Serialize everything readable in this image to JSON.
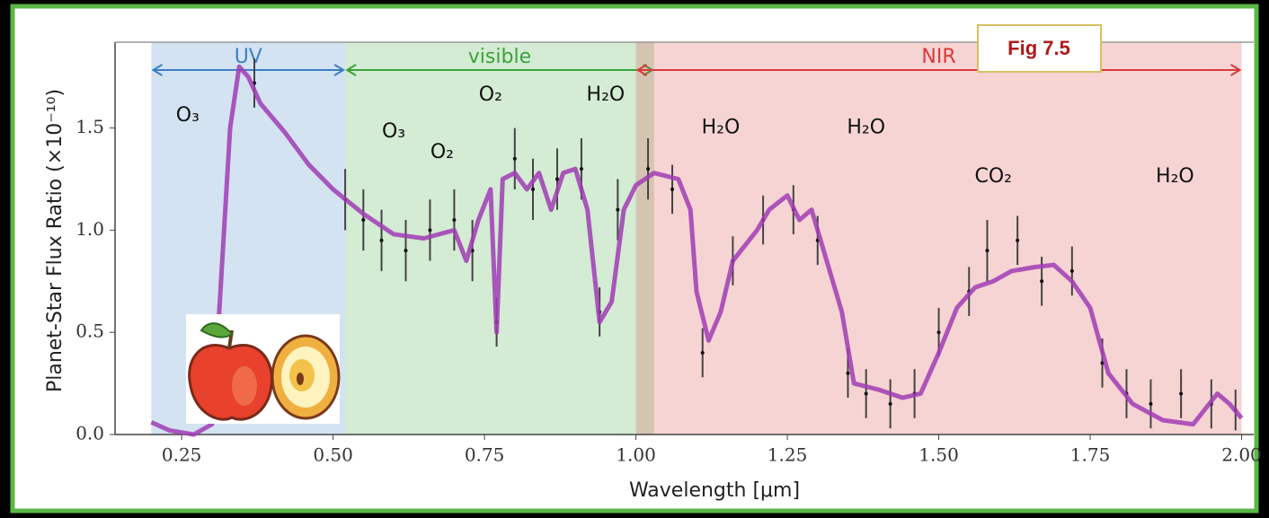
{
  "chart_data": {
    "type": "line",
    "annotation": "Fig 7.5",
    "xlabel": "Wavelength [μm]",
    "ylabel": "Planet-Star Flux Ratio (×10⁻¹⁰)",
    "xlim": [
      0.14,
      2.02
    ],
    "ylim": [
      0,
      1.92
    ],
    "xticks": [
      0.25,
      {
        "value": 0.5,
        "label": "0.50"
      },
      0.75,
      {
        "value": 1,
        "label": "1.00"
      },
      1.25,
      {
        "value": 1.5,
        "label": "1.50"
      },
      1.75,
      {
        "value": 2,
        "label": "2.00"
      }
    ],
    "yticks": [
      {
        "value": 0,
        "label": "0.0"
      },
      0.5,
      {
        "value": 1,
        "label": "1.0"
      },
      1.5
    ],
    "bands": [
      {
        "label": "UV",
        "range": [
          0.2,
          0.52
        ],
        "color": "#3b7fc4"
      },
      {
        "label": "visible",
        "range": [
          0.52,
          1.03
        ],
        "color": "#3aa33a"
      },
      {
        "label": "NIR",
        "range": [
          1.0,
          2.0
        ],
        "color": "#d93a3a"
      }
    ],
    "features": [
      {
        "label": "O₃",
        "x": 0.26,
        "y": 1.56
      },
      {
        "label": "O₃",
        "x": 0.6,
        "y": 1.48
      },
      {
        "label": "O₂",
        "x": 0.68,
        "y": 1.38
      },
      {
        "label": "O₂",
        "x": 0.76,
        "y": 1.66
      },
      {
        "label": "H₂O",
        "x": 0.95,
        "y": 1.66
      },
      {
        "label": "H₂O",
        "x": 1.14,
        "y": 1.5
      },
      {
        "label": "H₂O",
        "x": 1.38,
        "y": 1.5
      },
      {
        "label": "CO₂",
        "x": 1.59,
        "y": 1.26
      },
      {
        "label": "H₂O",
        "x": 1.89,
        "y": 1.26
      }
    ],
    "x": [
      0.2,
      0.23,
      0.27,
      0.3,
      0.31,
      0.33,
      0.345,
      0.36,
      0.38,
      0.42,
      0.46,
      0.5,
      0.55,
      0.6,
      0.65,
      0.7,
      0.72,
      0.74,
      0.76,
      0.77,
      0.78,
      0.8,
      0.82,
      0.84,
      0.86,
      0.88,
      0.9,
      0.92,
      0.94,
      0.96,
      0.98,
      1.0,
      1.03,
      1.07,
      1.09,
      1.1,
      1.12,
      1.14,
      1.16,
      1.2,
      1.22,
      1.25,
      1.27,
      1.29,
      1.31,
      1.34,
      1.36,
      1.4,
      1.44,
      1.47,
      1.5,
      1.53,
      1.56,
      1.59,
      1.62,
      1.66,
      1.69,
      1.72,
      1.75,
      1.78,
      1.82,
      1.87,
      1.92,
      1.96,
      1.98,
      2.0
    ],
    "series": [
      {
        "color": "#a03cb4",
        "values": [
          0.06,
          0.02,
          0.0,
          0.05,
          0.5,
          1.5,
          1.8,
          1.75,
          1.62,
          1.48,
          1.32,
          1.2,
          1.08,
          0.98,
          0.96,
          1.0,
          0.85,
          1.05,
          1.2,
          0.5,
          1.25,
          1.28,
          1.2,
          1.28,
          1.1,
          1.28,
          1.3,
          1.1,
          0.55,
          0.65,
          1.1,
          1.22,
          1.28,
          1.25,
          1.1,
          0.7,
          0.46,
          0.6,
          0.85,
          1.0,
          1.1,
          1.17,
          1.05,
          1.1,
          0.9,
          0.6,
          0.25,
          0.22,
          0.18,
          0.2,
          0.4,
          0.62,
          0.72,
          0.75,
          0.8,
          0.82,
          0.83,
          0.75,
          0.62,
          0.3,
          0.15,
          0.07,
          0.05,
          0.2,
          0.15,
          0.08
        ]
      }
    ],
    "observations": {
      "color": "#444444",
      "x": [
        0.37,
        0.52,
        0.55,
        0.58,
        0.62,
        0.66,
        0.7,
        0.73,
        0.77,
        0.8,
        0.83,
        0.87,
        0.91,
        0.94,
        0.97,
        1.02,
        1.06,
        1.11,
        1.16,
        1.21,
        1.26,
        1.3,
        1.35,
        1.38,
        1.42,
        1.46,
        1.5,
        1.55,
        1.58,
        1.63,
        1.67,
        1.72,
        1.77,
        1.81,
        1.85,
        1.9,
        1.95,
        1.99
      ],
      "values": [
        1.72,
        1.15,
        1.05,
        0.95,
        0.9,
        1.0,
        1.05,
        0.9,
        0.55,
        1.35,
        1.2,
        1.25,
        1.3,
        0.6,
        1.1,
        1.3,
        1.2,
        0.4,
        0.85,
        1.05,
        1.1,
        0.95,
        0.3,
        0.2,
        0.15,
        0.2,
        0.5,
        0.7,
        0.9,
        0.95,
        0.75,
        0.8,
        0.35,
        0.2,
        0.15,
        0.2,
        0.15,
        0.12
      ],
      "errors": [
        0.12,
        0.15,
        0.15,
        0.15,
        0.15,
        0.15,
        0.15,
        0.15,
        0.12,
        0.15,
        0.15,
        0.15,
        0.15,
        0.12,
        0.15,
        0.15,
        0.12,
        0.12,
        0.12,
        0.12,
        0.12,
        0.12,
        0.12,
        0.12,
        0.12,
        0.12,
        0.12,
        0.12,
        0.15,
        0.12,
        0.12,
        0.12,
        0.12,
        0.12,
        0.12,
        0.12,
        0.12,
        0.1
      ]
    }
  }
}
